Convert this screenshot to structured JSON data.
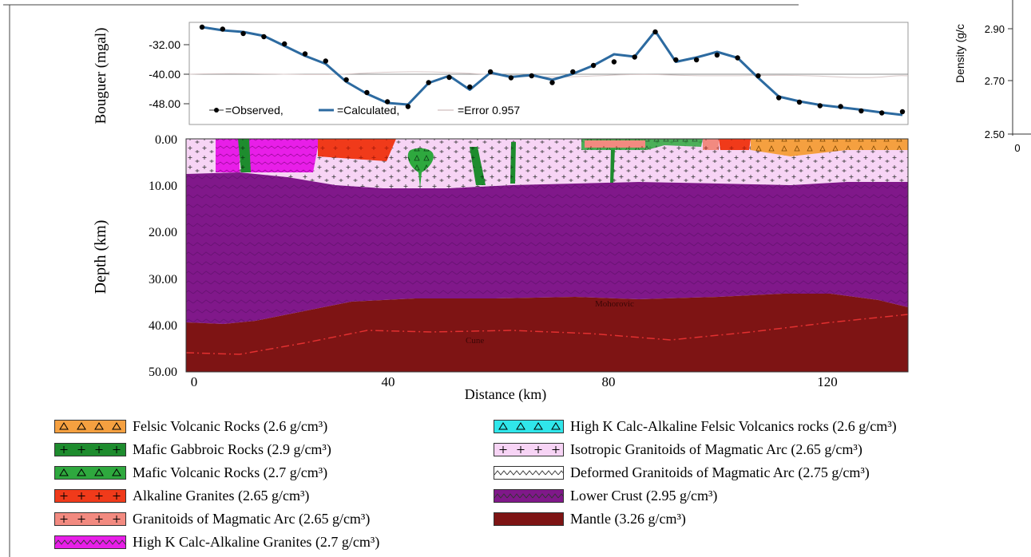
{
  "gravity_panel": {
    "ylabel": "Bouguer (mgal)",
    "ticks": [
      "-32.00",
      "-40.00",
      "-48.00"
    ],
    "legend_observed": "=Observed,",
    "legend_calculated": "=Calculated,",
    "legend_error": "=Error 0.957"
  },
  "section_panel": {
    "ylabel": "Depth (km)",
    "xlabel": "Distance (km)",
    "yticks": [
      "0.00",
      "10.00",
      "20.00",
      "30.00",
      "40.00",
      "50.00"
    ],
    "xticks": [
      "0",
      "40",
      "80",
      "120"
    ],
    "label_moho_1": "Mohorovic",
    "label_moho_2": "Cune"
  },
  "density_inset": {
    "ylabel": "Density (g/c",
    "ticks": [
      "2.90",
      "2.70",
      "2.50"
    ],
    "xtick": "0"
  },
  "chart_data": {
    "type": "line",
    "ylabel": "Bouguer (mgal)",
    "xlabel": "Distance (km)",
    "xlim": [
      0,
      136
    ],
    "ylim": [
      -52,
      -28
    ],
    "x": [
      0,
      4,
      8,
      12,
      16,
      20,
      24,
      28,
      32,
      36,
      40,
      44,
      48,
      52,
      56,
      60,
      64,
      68,
      72,
      76,
      80,
      84,
      88,
      92,
      96,
      100,
      104,
      108,
      112,
      116,
      120,
      124,
      128,
      132,
      136
    ],
    "series": [
      {
        "name": "Observed",
        "values": [
          -28.8,
          -29.3,
          -30.4,
          -31.2,
          -33.0,
          -35.5,
          -37.3,
          -42.0,
          -45.2,
          -47.5,
          -48.7,
          -42.7,
          -41.4,
          -43.8,
          -40.0,
          -41.5,
          -41.0,
          -42.7,
          -40.0,
          -38.4,
          -37.5,
          -36.3,
          -30.0,
          -37.0,
          -37.0,
          -35.8,
          -36.5,
          -41.0,
          -46.5,
          -47.6,
          -48.5,
          -48.7,
          -49.8,
          -50.3,
          -50.0
        ]
      },
      {
        "name": "Calculated",
        "values": [
          -28.8,
          -29.6,
          -30.0,
          -31.0,
          -33.5,
          -36.0,
          -38.0,
          -42.5,
          -45.5,
          -47.8,
          -48.2,
          -42.8,
          -41.0,
          -44.5,
          -40.2,
          -41.3,
          -40.8,
          -42.0,
          -40.5,
          -38.4,
          -35.6,
          -36.2,
          -29.8,
          -37.5,
          -36.4,
          -35.0,
          -36.5,
          -41.5,
          -46.2,
          -47.4,
          -48.3,
          -48.9,
          -49.5,
          -50.2,
          -50.8
        ]
      }
    ]
  },
  "legend_left": [
    {
      "label": "Felsic Volcanic Rocks (2.6 g/cm³)",
      "color": "#f5a040",
      "pattern": "triangles"
    },
    {
      "label": "Mafic Gabbroic Rocks (2.9 g/cm³)",
      "color": "#1e8c2e",
      "pattern": "crosses"
    },
    {
      "label": "Mafic Volcanic Rocks (2.7 g/cm³)",
      "color": "#2ea83e",
      "pattern": "triangles"
    },
    {
      "label": "Alkaline Granites (2.65 g/cm³)",
      "color": "#f03a1a",
      "pattern": "crosses"
    },
    {
      "label": "Granitoids of Magmatic Arc (2.65 g/cm³)",
      "color": "#f28a80",
      "pattern": "crosses"
    },
    {
      "label": "High K Calc-Alkaline Granites (2.7 g/cm³)",
      "color": "#e81ee8",
      "pattern": "waves"
    }
  ],
  "legend_right": [
    {
      "label": "High K Calc-Alkaline Felsic Volcanics rocks (2.6 g/cm³)",
      "color": "#30e6ea",
      "pattern": "triangles"
    },
    {
      "label": "Isotropic Granitoids of Magmatic Arc (2.65 g/cm³)",
      "color": "#f7d4f5",
      "pattern": "crosses"
    },
    {
      "label": "Deformed Granitoids of Magmatic Arc (2.75 g/cm³)",
      "color": "#ffffff",
      "pattern": "waves"
    },
    {
      "label": "Lower Crust (2.95 g/cm³)",
      "color": "#80188a",
      "pattern": "waves"
    },
    {
      "label": "Mantle (3.26 g/cm³)",
      "color": "#7e1414",
      "pattern": "none"
    }
  ]
}
